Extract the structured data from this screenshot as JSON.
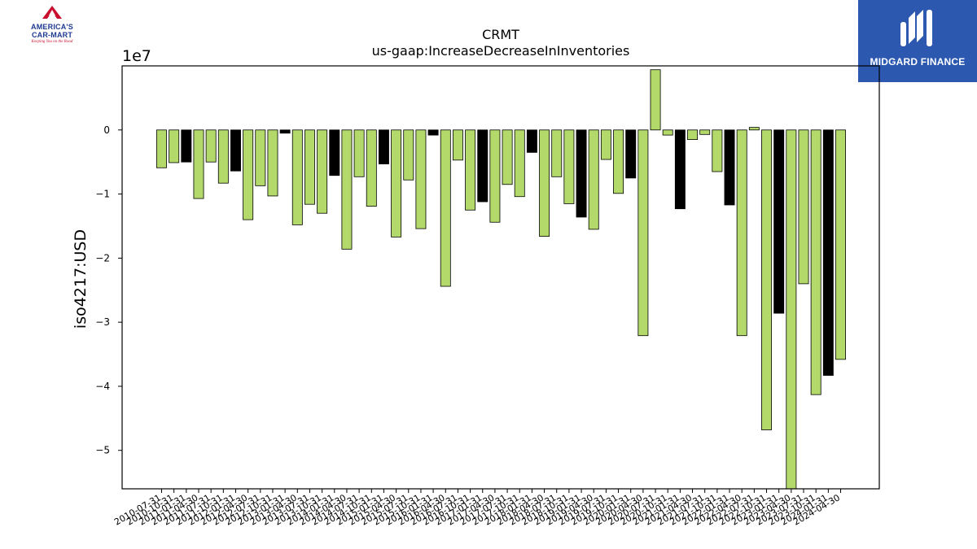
{
  "logos": {
    "left": {
      "line1": "AMERICA'S",
      "line2": "CAR-MART",
      "tagline": "Keeping You on the Road"
    },
    "right": {
      "text": "MIDGARD FINANCE"
    }
  },
  "colors": {
    "bar_green": "#b3d96b",
    "bar_black": "#000000",
    "edge": "#000000"
  },
  "chart_data": {
    "type": "bar",
    "title": "CRMT",
    "subtitle": "us-gaap:IncreaseDecreaseInInventories",
    "ylabel": "iso4217:USD",
    "xlabel": "",
    "y_scale_label": "1e7",
    "ylim": [
      -5.6,
      1.0
    ],
    "yticks": [
      0,
      -1,
      -2,
      -3,
      -4,
      -5
    ],
    "ytick_labels": [
      "0",
      "−1",
      "−2",
      "−3",
      "−4",
      "−5"
    ],
    "grid": false,
    "categories": [
      "2010-07-31",
      "2010-10-31",
      "2011-01-31",
      "2011-04-30",
      "2011-07-31",
      "2011-10-31",
      "2012-01-31",
      "2012-04-30",
      "2012-07-31",
      "2012-10-31",
      "2013-01-31",
      "2013-04-30",
      "2013-07-31",
      "2013-10-31",
      "2014-01-31",
      "2014-04-30",
      "2014-07-31",
      "2014-10-31",
      "2015-01-31",
      "2015-04-30",
      "2015-07-31",
      "2015-10-31",
      "2016-01-31",
      "2016-04-30",
      "2016-07-31",
      "2016-10-31",
      "2017-01-31",
      "2017-04-30",
      "2017-07-31",
      "2017-10-31",
      "2018-01-31",
      "2018-04-30",
      "2018-07-31",
      "2018-10-31",
      "2019-01-31",
      "2019-04-30",
      "2019-07-31",
      "2019-10-31",
      "2020-01-31",
      "2020-04-30",
      "2020-07-31",
      "2020-10-31",
      "2021-01-31",
      "2021-04-30",
      "2021-07-31",
      "2021-10-31",
      "2022-01-31",
      "2022-04-30",
      "2022-07-31",
      "2022-10-31",
      "2023-01-31",
      "2023-04-30",
      "2023-07-31",
      "2023-10-31",
      "2024-01-31",
      "2024-04-30"
    ],
    "values": [
      -0.59,
      -0.51,
      -0.5,
      -1.07,
      -0.5,
      -0.83,
      -0.64,
      -1.4,
      -0.87,
      -1.03,
      -0.05,
      -1.48,
      -1.16,
      -1.3,
      -0.71,
      -1.86,
      -0.73,
      -1.19,
      -0.53,
      -1.67,
      -0.78,
      -1.54,
      -0.08,
      -2.44,
      -0.47,
      -1.25,
      -1.12,
      -1.44,
      -0.85,
      -1.04,
      -0.35,
      -1.66,
      -0.73,
      -1.15,
      -1.36,
      -1.55,
      -0.46,
      -0.99,
      -0.75,
      -3.21,
      0.94,
      -0.08,
      -1.23,
      -0.15,
      -0.07,
      -0.65,
      -1.17,
      -3.21,
      0.04,
      -4.68,
      -2.86,
      -5.6,
      -2.4,
      -4.13,
      -3.83,
      -3.58
    ],
    "bar_colors": [
      "g",
      "g",
      "k",
      "g",
      "g",
      "g",
      "k",
      "g",
      "g",
      "g",
      "k",
      "g",
      "g",
      "g",
      "k",
      "g",
      "g",
      "g",
      "k",
      "g",
      "g",
      "g",
      "k",
      "g",
      "g",
      "g",
      "k",
      "g",
      "g",
      "g",
      "k",
      "g",
      "g",
      "g",
      "k",
      "g",
      "g",
      "g",
      "k",
      "g",
      "g",
      "g",
      "k",
      "g",
      "g",
      "g",
      "k",
      "g",
      "g",
      "g",
      "k",
      "g",
      "g",
      "g",
      "k",
      "g"
    ]
  }
}
